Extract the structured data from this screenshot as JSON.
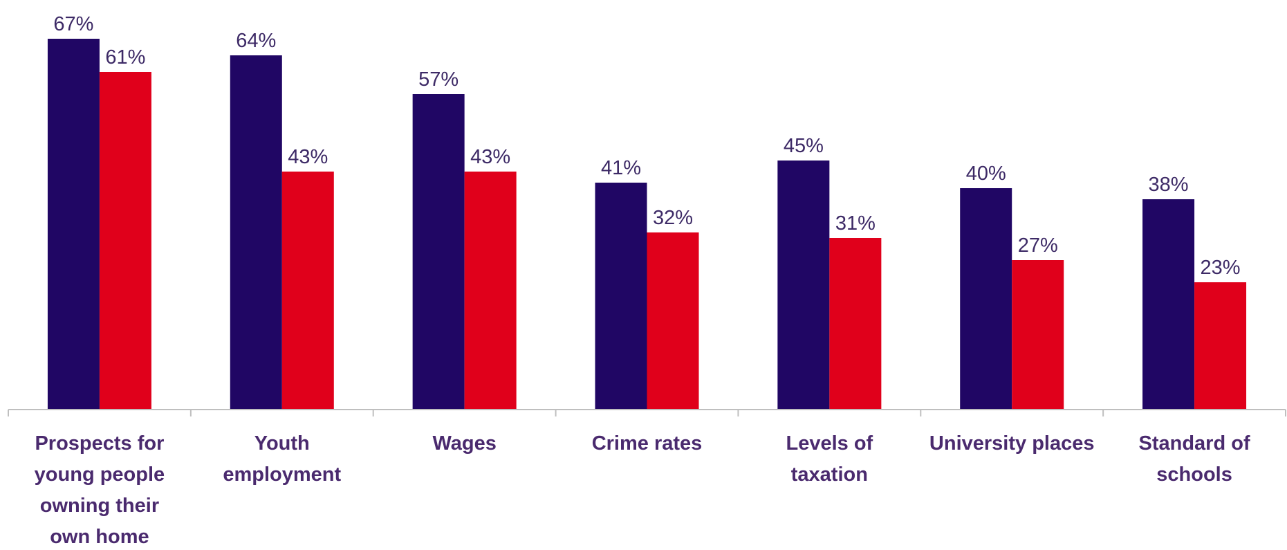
{
  "chart_data": {
    "type": "bar",
    "categories": [
      [
        "Prospects for",
        "young people",
        "owning their",
        "own home"
      ],
      [
        "Youth",
        "employment"
      ],
      [
        "Wages"
      ],
      [
        "Crime rates"
      ],
      [
        "Levels of",
        "taxation"
      ],
      [
        "University places"
      ],
      [
        "Standard of",
        "schools"
      ]
    ],
    "series": [
      {
        "values": [
          67,
          64,
          57,
          41,
          45,
          40,
          38
        ],
        "color": "#200664"
      },
      {
        "values": [
          61,
          43,
          43,
          32,
          31,
          27,
          23
        ],
        "color": "#e0001b"
      }
    ],
    "value_labels": [
      [
        "67%",
        "64%",
        "57%",
        "41%",
        "45%",
        "40%",
        "38%"
      ],
      [
        "61%",
        "43%",
        "43%",
        "32%",
        "31%",
        "27%",
        "23%"
      ]
    ],
    "ylim": [
      0,
      67
    ],
    "grid": false,
    "legend": "none",
    "axis_color": "#bfbfbf"
  }
}
